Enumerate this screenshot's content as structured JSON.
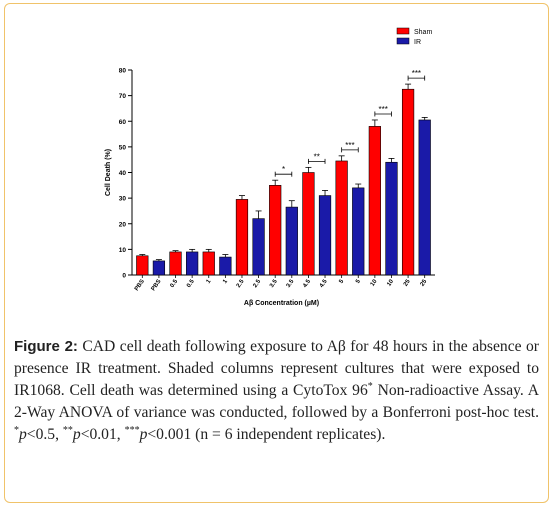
{
  "chart_data": {
    "type": "bar",
    "ylabel": "Cell Death (%)",
    "xlabel": "Aβ Concentration (µM)",
    "ylim": [
      0,
      80
    ],
    "yticks": [
      0,
      10,
      20,
      30,
      40,
      50,
      60,
      70,
      80
    ],
    "categories": [
      "PBS",
      "0.5",
      "1",
      "2.5",
      "3.5",
      "4.5",
      "5",
      "10",
      "25"
    ],
    "series": [
      {
        "name": "Sham",
        "color": "#ff0000",
        "values": [
          7.5,
          9,
          9,
          29.5,
          35,
          40,
          44.5,
          58,
          72.5
        ],
        "errors": [
          0.5,
          0.5,
          1,
          1.5,
          2,
          2,
          2,
          2.5,
          2
        ]
      },
      {
        "name": "IR",
        "color": "#1a1aa8",
        "values": [
          5.5,
          9,
          7,
          22,
          26.5,
          31,
          34,
          44,
          60.5
        ],
        "errors": [
          0.5,
          1,
          1,
          3,
          2.5,
          2,
          1.5,
          1.5,
          1
        ]
      }
    ],
    "significance": [
      {
        "category": "3.5",
        "label": "*"
      },
      {
        "category": "4.5",
        "label": "**"
      },
      {
        "category": "5",
        "label": "***"
      },
      {
        "category": "10",
        "label": "***"
      },
      {
        "category": "25",
        "label": "***"
      }
    ],
    "legend_position": "top-right"
  },
  "caption": {
    "label": "Figure 2:",
    "part1": " CAD cell death following exposure to Aβ for 48 hours in the absence or presence IR treatment. Shaded columns represent cultures that were exposed to IR1068. Cell death was determined using a CytoTox 96",
    "sup1": "*",
    "part2": " Non-radioactive Assay. A 2-Way ANOVA of variance was conducted, followed by a Bonferroni post-hoc test. ",
    "sup_a": "*",
    "p_a": "p",
    "t_a": "<0.5, ",
    "sup_b": "**",
    "p_b": "p",
    "t_b": "<0.01, ",
    "sup_c": "***",
    "p_c": "p",
    "t_c": "<0.001 (n = 6 independent replicates)."
  }
}
